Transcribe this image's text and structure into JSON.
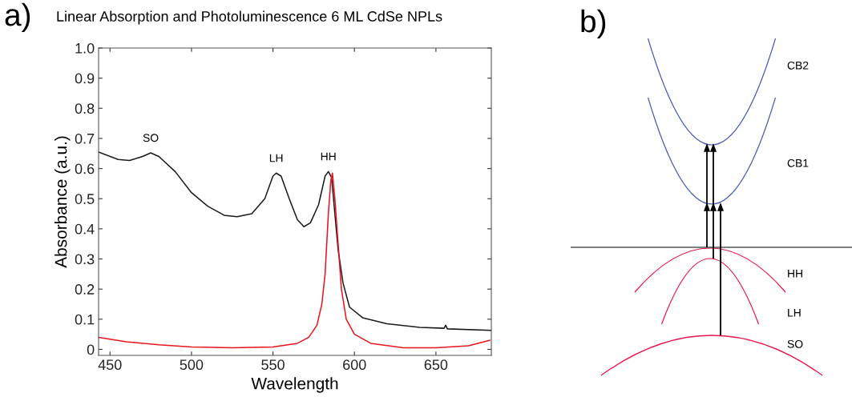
{
  "chart_data": [
    {
      "type": "line",
      "title": "Linear Absorption and Photoluminescence 6 ML CdSe NPLs",
      "xlabel": "Wavelength",
      "ylabel": "Absorbance (a.u.)",
      "xlim": [
        443,
        684
      ],
      "ylim": [
        -0.02,
        1.0
      ],
      "xticks": [
        450,
        500,
        550,
        600,
        650
      ],
      "yticks": [
        0,
        0.1,
        0.2,
        0.3,
        0.4,
        0.5,
        0.6,
        0.7,
        0.8,
        0.9,
        {
          "value": 1.0,
          "label": "1.0"
        }
      ],
      "series": [
        {
          "color": "#1a1a1a",
          "x": [
            443,
            455,
            462,
            470,
            475,
            480,
            490,
            500,
            510,
            520,
            528,
            537,
            545,
            550,
            552,
            555,
            560,
            565,
            569,
            573,
            578,
            582,
            584,
            586,
            588,
            590,
            593,
            597,
            605,
            620,
            640,
            655,
            656,
            657,
            684
          ],
          "values": [
            0.655,
            0.63,
            0.627,
            0.64,
            0.652,
            0.64,
            0.59,
            0.52,
            0.475,
            0.445,
            0.44,
            0.45,
            0.5,
            0.575,
            0.585,
            0.575,
            0.5,
            0.43,
            0.407,
            0.42,
            0.48,
            0.575,
            0.59,
            0.57,
            0.45,
            0.33,
            0.22,
            0.14,
            0.105,
            0.085,
            0.073,
            0.07,
            0.08,
            0.068,
            0.063
          ]
        },
        {
          "color": "#e8141c",
          "x": [
            443,
            460,
            480,
            500,
            525,
            550,
            565,
            572,
            577,
            580,
            582,
            584,
            585.5,
            586.5,
            588,
            590,
            592,
            595,
            600,
            610,
            630,
            650,
            670,
            683
          ],
          "values": [
            0.04,
            0.025,
            0.015,
            0.008,
            0.005,
            0.008,
            0.02,
            0.04,
            0.08,
            0.15,
            0.25,
            0.45,
            0.56,
            0.585,
            0.5,
            0.35,
            0.2,
            0.1,
            0.05,
            0.02,
            0.005,
            0.005,
            0.012,
            0.03
          ]
        }
      ],
      "annotations": [
        "a)",
        {
          "text": "SO",
          "x": 475,
          "y": 0.652
        },
        {
          "text": "LH",
          "x": 552,
          "y": 0.585
        },
        {
          "text": "HH",
          "x": 584,
          "y": 0.59
        }
      ]
    },
    {
      "type": "other",
      "annotations": [
        "b)",
        "CB2",
        "CB1",
        "HH",
        "LH",
        "SO"
      ]
    }
  ]
}
